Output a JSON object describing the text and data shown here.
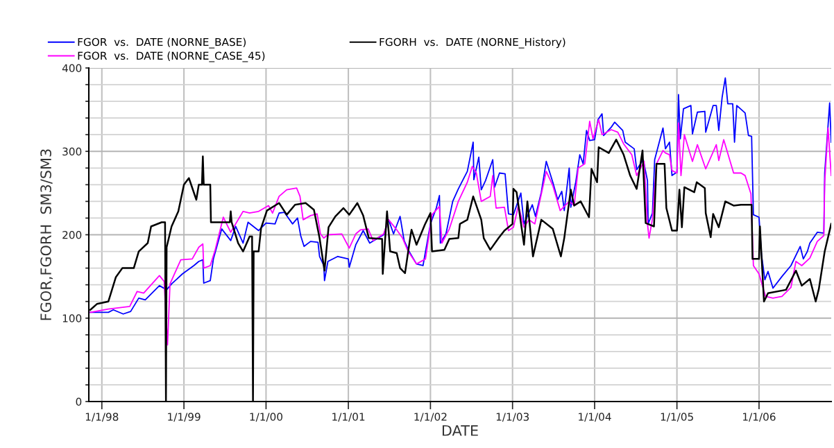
{
  "chart_data": {
    "type": "line",
    "xlabel": "DATE",
    "ylabel": "FGOR,FGORH  SM3/SM3",
    "legend": "top left",
    "grid": true,
    "marker": "none",
    "line_style": "solid",
    "xlim": [
      "1997-11-04",
      "2006-11-18"
    ],
    "xticks": [
      {
        "value": "1998-01-01",
        "label": "1/1/98"
      },
      {
        "value": "1999-01-01",
        "label": "1/1/99"
      },
      {
        "value": "2000-01-01",
        "label": "1/1/00"
      },
      {
        "value": "2001-01-01",
        "label": "1/1/01"
      },
      {
        "value": "2002-01-01",
        "label": "1/1/02"
      },
      {
        "value": "2003-01-01",
        "label": "1/1/03"
      },
      {
        "value": "2004-01-01",
        "label": "1/1/04"
      },
      {
        "value": "2005-01-01",
        "label": "1/1/05"
      },
      {
        "value": "2006-01-01",
        "label": "1/1/06"
      }
    ],
    "ylim": [
      0,
      400
    ],
    "yticks": [
      0,
      {
        "value": 20,
        "label": null
      },
      {
        "value": 40,
        "label": null
      },
      {
        "value": 60,
        "label": null
      },
      {
        "value": 80,
        "label": null
      },
      100,
      {
        "value": 120,
        "label": null
      },
      {
        "value": 140,
        "label": null
      },
      {
        "value": 160,
        "label": null
      },
      {
        "value": 180,
        "label": null
      },
      200,
      {
        "value": 220,
        "label": null
      },
      {
        "value": 240,
        "label": null
      },
      {
        "value": 260,
        "label": null
      },
      {
        "value": 280,
        "label": null
      },
      300,
      {
        "value": 320,
        "label": null
      },
      {
        "value": 340,
        "label": null
      },
      {
        "value": 360,
        "label": null
      },
      {
        "value": 380,
        "label": null
      },
      400
    ],
    "series": [
      {
        "name": "FGOR  vs.  DATE (NORNE_BASE)",
        "color": "#0000ff",
        "x": [
          "1997-11-11",
          "1998-01-30",
          "1998-02-21",
          "1998-04-06",
          "1998-05-09",
          "1998-06-14",
          "1998-07-13",
          "1998-09-14",
          "1998-10-16",
          "1998-11-07",
          "1998-12-25",
          "1999-02-14",
          "1999-03-08",
          "1999-03-26",
          "1999-03-30",
          "1999-04-28",
          "1999-05-12",
          "1999-06-18",
          "1999-07-28",
          "1999-08-19",
          "1999-09-21",
          "1999-10-13",
          "1999-11-29",
          "2000-01-01",
          "2000-02-10",
          "2000-02-28",
          "2000-03-22",
          "2000-04-28",
          "2000-05-20",
          "2000-06-03",
          "2000-06-18",
          "2000-07-17",
          "2000-08-19",
          "2000-08-26",
          "2000-09-14",
          "2000-09-17",
          "2000-10-02",
          "2000-11-15",
          "2001-01-01",
          "2001-01-05",
          "2001-02-03",
          "2001-03-08",
          "2001-04-06",
          "2001-06-07",
          "2001-06-29",
          "2001-07-21",
          "2001-08-19",
          "2001-09-06",
          "2001-09-28",
          "2001-10-31",
          "2001-11-29",
          "2002-01-01",
          "2002-01-27",
          "2002-02-10",
          "2002-02-14",
          "2002-03-11",
          "2002-04-10",
          "2002-05-05",
          "2002-06-14",
          "2002-07-10",
          "2002-07-13",
          "2002-08-04",
          "2002-08-15",
          "2002-09-03",
          "2002-10-05",
          "2002-10-13",
          "2002-11-04",
          "2002-11-29",
          "2002-12-14",
          "2003-01-05",
          "2003-02-07",
          "2003-02-21",
          "2003-03-30",
          "2003-04-13",
          "2003-05-09",
          "2003-05-31",
          "2003-06-29",
          "2003-07-21",
          "2003-08-08",
          "2003-08-19",
          "2003-09-10",
          "2003-09-17",
          "2003-10-09",
          "2003-10-27",
          "2003-11-11",
          "2003-11-26",
          "2003-12-10",
          "2004-01-01",
          "2004-01-16",
          "2004-02-03",
          "2004-02-10",
          "2004-03-15",
          "2004-03-30",
          "2004-05-05",
          "2004-05-16",
          "2004-06-25",
          "2004-07-06",
          "2004-08-04",
          "2004-08-23",
          "2004-08-26",
          "2004-09-14",
          "2004-09-24",
          "2004-10-31",
          "2004-11-11",
          "2004-11-29",
          "2004-12-10",
          "2005-01-01",
          "2005-01-08",
          "2005-01-16",
          "2005-01-30",
          "2005-03-04",
          "2005-03-11",
          "2005-04-02",
          "2005-05-05",
          "2005-05-09",
          "2005-06-11",
          "2005-06-25",
          "2005-07-06",
          "2005-07-21",
          "2005-08-04",
          "2005-08-15",
          "2005-09-06",
          "2005-09-14",
          "2005-09-24",
          "2005-10-31",
          "2005-11-15",
          "2005-11-29",
          "2005-12-07",
          "2006-01-01",
          "2006-01-12",
          "2006-01-27",
          "2006-02-10",
          "2006-03-04",
          "2006-04-13",
          "2006-05-23",
          "2006-07-03",
          "2006-07-17",
          "2006-08-04",
          "2006-08-15",
          "2006-09-17",
          "2006-10-16",
          "2006-10-20",
          "2006-11-11",
          "2006-11-18"
        ],
        "values": [
          107,
          107,
          110,
          105,
          108,
          124,
          122,
          139,
          134,
          141,
          153,
          163,
          168,
          170,
          142,
          145,
          171,
          207,
          193,
          210,
          190,
          215,
          205,
          214,
          213,
          226,
          227,
          213,
          220,
          199,
          186,
          192,
          191,
          174,
          163,
          145,
          168,
          174,
          171,
          161,
          188,
          205,
          190,
          200,
          218,
          201,
          222,
          193,
          180,
          165,
          163,
          213,
          232,
          247,
          190,
          201,
          240,
          255,
          276,
          311,
          266,
          293,
          254,
          265,
          290,
          257,
          274,
          273,
          225,
          224,
          250,
          213,
          236,
          222,
          251,
          288,
          263,
          242,
          252,
          229,
          280,
          233,
          263,
          296,
          285,
          325,
          313,
          314,
          338,
          345,
          319,
          329,
          335,
          325,
          311,
          303,
          278,
          290,
          265,
          213,
          226,
          290,
          328,
          303,
          311,
          271,
          275,
          368,
          315,
          351,
          355,
          321,
          347,
          348,
          323,
          355,
          355,
          325,
          365,
          388,
          357,
          357,
          311,
          355,
          346,
          319,
          318,
          224,
          221,
          176,
          146,
          156,
          136,
          150,
          163,
          186,
          171,
          180,
          190,
          203,
          202,
          274,
          358,
          311
        ]
      },
      {
        "name": "FGOR  vs.  DATE (NORNE_CASE_45)",
        "color": "#ff00ff",
        "x": [
          "1997-11-11",
          "1998-01-30",
          "1998-05-05",
          "1998-06-07",
          "1998-07-06",
          "1998-09-14",
          "1998-10-05",
          "1998-10-20",
          "1998-10-31",
          "1998-12-18",
          "1999-02-07",
          "1999-03-08",
          "1999-03-26",
          "1999-03-30",
          "1999-04-28",
          "1999-05-20",
          "1999-06-25",
          "1999-07-28",
          "1999-09-21",
          "1999-10-20",
          "1999-11-29",
          "2000-01-12",
          "2000-01-30",
          "2000-02-28",
          "2000-04-02",
          "2000-05-16",
          "2000-05-31",
          "2000-06-14",
          "2000-07-17",
          "2000-08-15",
          "2000-08-30",
          "2000-09-14",
          "2000-10-02",
          "2000-12-03",
          "2001-01-05",
          "2001-02-03",
          "2001-02-25",
          "2001-03-30",
          "2001-04-21",
          "2001-06-07",
          "2001-06-29",
          "2001-08-01",
          "2001-08-30",
          "2001-09-24",
          "2001-10-31",
          "2001-12-10",
          "2002-01-08",
          "2002-02-10",
          "2002-02-21",
          "2002-03-26",
          "2002-05-05",
          "2002-06-14",
          "2002-07-06",
          "2002-07-24",
          "2002-08-15",
          "2002-09-24",
          "2002-10-05",
          "2002-10-20",
          "2002-11-26",
          "2002-12-14",
          "2003-01-05",
          "2003-01-27",
          "2003-02-21",
          "2003-03-15",
          "2003-04-10",
          "2003-05-31",
          "2003-06-29",
          "2003-08-01",
          "2003-09-10",
          "2003-10-02",
          "2003-10-20",
          "2003-11-18",
          "2003-12-10",
          "2003-12-25",
          "2004-01-19",
          "2004-02-03",
          "2004-03-15",
          "2004-04-13",
          "2004-05-09",
          "2004-06-14",
          "2004-07-06",
          "2004-08-08",
          "2004-08-23",
          "2004-08-30",
          "2004-09-14",
          "2004-10-02",
          "2004-10-31",
          "2004-11-11",
          "2004-11-29",
          "2004-12-10",
          "2005-01-01",
          "2005-01-08",
          "2005-01-19",
          "2005-02-03",
          "2005-03-11",
          "2005-04-02",
          "2005-05-09",
          "2005-06-25",
          "2005-07-06",
          "2005-07-28",
          "2005-09-10",
          "2005-10-13",
          "2005-10-31",
          "2005-11-26",
          "2005-12-07",
          "2006-01-01",
          "2006-01-30",
          "2006-03-04",
          "2006-04-13",
          "2006-05-23",
          "2006-06-14",
          "2006-07-10",
          "2006-08-15",
          "2006-09-17",
          "2006-10-16",
          "2006-10-20",
          "2006-11-04",
          "2006-11-18"
        ],
        "values": [
          107,
          111,
          114,
          132,
          130,
          151,
          144,
          68,
          141,
          170,
          171,
          185,
          189,
          160,
          163,
          182,
          221,
          203,
          228,
          226,
          228,
          235,
          226,
          246,
          254,
          256,
          246,
          218,
          223,
          225,
          201,
          196,
          200,
          201,
          184,
          201,
          206,
          207,
          193,
          201,
          218,
          207,
          196,
          180,
          165,
          171,
          224,
          234,
          190,
          207,
          240,
          263,
          282,
          274,
          240,
          246,
          271,
          232,
          233,
          205,
          209,
          235,
          209,
          218,
          213,
          276,
          259,
          229,
          240,
          235,
          280,
          285,
          336,
          315,
          338,
          320,
          326,
          323,
          309,
          296,
          271,
          288,
          213,
          196,
          219,
          285,
          301,
          298,
          296,
          277,
          274,
          334,
          271,
          320,
          288,
          308,
          279,
          308,
          289,
          314,
          274,
          274,
          271,
          249,
          163,
          153,
          126,
          124,
          126,
          137,
          168,
          163,
          172,
          192,
          199,
          263,
          328,
          271
        ]
      },
      {
        "name": "FGORH  vs.  DATE (NORNE_History)",
        "color": "#000000",
        "x": [
          "1997-11-11",
          "1997-12-10",
          "1998-01-30",
          "1998-03-04",
          "1998-04-02",
          "1998-05-23",
          "1998-06-14",
          "1998-07-24",
          "1998-08-08",
          "1998-09-24",
          "1998-10-09",
          "1998-10-13",
          "1998-10-16",
          "1998-11-07",
          "1998-12-07",
          "1999-01-01",
          "1999-01-23",
          "1999-02-25",
          "1999-03-08",
          "1999-03-22",
          "1999-03-26",
          "1999-03-30",
          "1999-04-28",
          "1999-05-01",
          "1999-06-18",
          "1999-07-24",
          "1999-07-28",
          "1999-08-01",
          "1999-08-30",
          "1999-09-21",
          "1999-10-20",
          "1999-10-31",
          "1999-11-04",
          "1999-11-07",
          "1999-11-29",
          "1999-12-10",
          "2000-01-05",
          "2000-02-28",
          "2000-04-02",
          "2000-05-09",
          "2000-06-25",
          "2000-08-01",
          "2000-08-26",
          "2000-09-17",
          "2000-10-05",
          "2000-11-04",
          "2000-12-10",
          "2001-01-05",
          "2001-02-10",
          "2001-03-08",
          "2001-04-02",
          "2001-05-31",
          "2001-06-03",
          "2001-06-22",
          "2001-07-06",
          "2001-08-04",
          "2001-08-19",
          "2001-09-10",
          "2001-10-05",
          "2001-10-09",
          "2001-10-31",
          "2001-12-07",
          "2002-01-01",
          "2002-01-08",
          "2002-03-04",
          "2002-03-26",
          "2002-05-05",
          "2002-05-12",
          "2002-06-14",
          "2002-07-10",
          "2002-08-15",
          "2002-08-26",
          "2002-09-24",
          "2002-10-31",
          "2002-11-26",
          "2003-01-01",
          "2003-01-05",
          "2003-01-19",
          "2003-02-21",
          "2003-03-08",
          "2003-04-02",
          "2003-05-09",
          "2003-06-29",
          "2003-08-04",
          "2003-08-19",
          "2003-09-17",
          "2003-10-02",
          "2003-10-31",
          "2003-12-07",
          "2003-12-18",
          "2004-01-12",
          "2004-01-19",
          "2004-03-04",
          "2004-04-06",
          "2004-05-09",
          "2004-06-07",
          "2004-07-06",
          "2004-08-01",
          "2004-08-15",
          "2004-09-21",
          "2004-10-02",
          "2004-11-07",
          "2004-11-15",
          "2004-12-10",
          "2005-01-01",
          "2005-01-12",
          "2005-01-23",
          "2005-02-03",
          "2005-03-19",
          "2005-03-30",
          "2005-05-05",
          "2005-05-09",
          "2005-05-31",
          "2005-06-11",
          "2005-07-06",
          "2005-08-04",
          "2005-09-10",
          "2005-10-13",
          "2005-11-29",
          "2005-12-03",
          "2006-01-01",
          "2006-01-05",
          "2006-01-23",
          "2006-02-10",
          "2006-05-01",
          "2006-06-14",
          "2006-07-10",
          "2006-08-15",
          "2006-09-10",
          "2006-09-24",
          "2006-10-20",
          "2006-11-18"
        ],
        "values": [
          110,
          117,
          120,
          149,
          160,
          160,
          180,
          190,
          210,
          215,
          215,
          0,
          185,
          210,
          228,
          260,
          268,
          242,
          260,
          260,
          294,
          260,
          260,
          215,
          215,
          215,
          228,
          215,
          190,
          180,
          198,
          198,
          0,
          180,
          180,
          208,
          229,
          238,
          224,
          236,
          238,
          230,
          196,
          157,
          209,
          222,
          232,
          224,
          238,
          223,
          196,
          195,
          153,
          228,
          180,
          178,
          160,
          154,
          200,
          206,
          188,
          212,
          226,
          180,
          182,
          195,
          196,
          213,
          218,
          246,
          218,
          196,
          182,
          196,
          205,
          213,
          255,
          251,
          188,
          240,
          174,
          218,
          207,
          174,
          196,
          254,
          235,
          240,
          221,
          279,
          263,
          305,
          298,
          314,
          296,
          271,
          255,
          301,
          214,
          210,
          285,
          285,
          232,
          205,
          205,
          254,
          209,
          257,
          251,
          263,
          256,
          226,
          197,
          225,
          209,
          240,
          235,
          236,
          236,
          171,
          171,
          210,
          120,
          130,
          134,
          157,
          139,
          147,
          120,
          135,
          180,
          213
        ]
      }
    ]
  }
}
